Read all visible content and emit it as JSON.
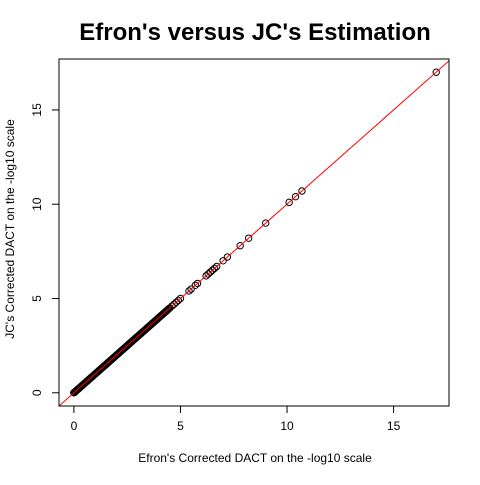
{
  "chart_data": {
    "type": "scatter",
    "title": "Efron's versus JC's Estimation",
    "xlabel": "Efron's Corrected DACT on the -log10 scale",
    "ylabel": "JC's Corrected DACT on the -log10 scale",
    "xlim": [
      -0.7,
      17.6
    ],
    "ylim": [
      -0.7,
      17.7
    ],
    "xticks": [
      0,
      5,
      10,
      15
    ],
    "yticks": [
      0,
      5,
      10,
      15
    ],
    "grid": false,
    "legend": "none",
    "point_color": "#000000",
    "reference_line": {
      "slope": 1,
      "intercept": 0,
      "color": "#ff0000"
    },
    "dense_band": {
      "from": 0,
      "to": 4.5,
      "step": 0.03,
      "note": ""
    },
    "points": [
      [
        0,
        0
      ],
      [
        0.05,
        0.05
      ],
      [
        0.1,
        0.1
      ],
      [
        0.2,
        0.2
      ],
      [
        4.6,
        4.6
      ],
      [
        4.7,
        4.7
      ],
      [
        4.8,
        4.8
      ],
      [
        4.9,
        4.9
      ],
      [
        5.0,
        5.0
      ],
      [
        5.4,
        5.4
      ],
      [
        5.5,
        5.5
      ],
      [
        5.7,
        5.7
      ],
      [
        5.8,
        5.8
      ],
      [
        6.2,
        6.2
      ],
      [
        6.3,
        6.3
      ],
      [
        6.4,
        6.4
      ],
      [
        6.5,
        6.5
      ],
      [
        6.6,
        6.6
      ],
      [
        6.7,
        6.7
      ],
      [
        7.0,
        7.0
      ],
      [
        7.2,
        7.2
      ],
      [
        7.8,
        7.8
      ],
      [
        8.2,
        8.2
      ],
      [
        9.0,
        9.0
      ],
      [
        10.1,
        10.1
      ],
      [
        10.4,
        10.4
      ],
      [
        10.7,
        10.7
      ],
      [
        17.0,
        17.0
      ]
    ]
  }
}
